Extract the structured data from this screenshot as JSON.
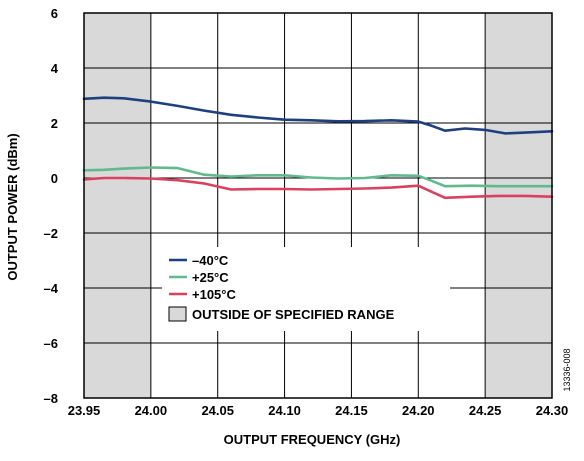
{
  "chart_data": {
    "type": "line",
    "xlabel": "OUTPUT FREQUENCY (GHz)",
    "ylabel": "OUTPUT POWER (dBm)",
    "xlim": [
      23.95,
      24.3
    ],
    "ylim": [
      -8,
      6
    ],
    "x_ticks": [
      23.95,
      24.0,
      24.05,
      24.1,
      24.15,
      24.2,
      24.25,
      24.3
    ],
    "x_tick_labels": [
      "23.95",
      "24.00",
      "24.05",
      "24.10",
      "24.15",
      "24.20",
      "24.25",
      "24.30"
    ],
    "y_ticks": [
      -8,
      -6,
      -4,
      -2,
      0,
      2,
      4,
      6
    ],
    "y_tick_labels": [
      "–8",
      "–6",
      "–4",
      "–2",
      "0",
      "2",
      "4",
      "6"
    ],
    "grid": true,
    "shaded_regions": [
      {
        "x_start": 23.95,
        "x_end": 24.0,
        "color": "#d9d9d9"
      },
      {
        "x_start": 24.25,
        "x_end": 24.3,
        "color": "#d9d9d9"
      }
    ],
    "series": [
      {
        "name": "–40°C",
        "color": "#1f3f7f",
        "x": [
          23.95,
          23.965,
          23.98,
          24.0,
          24.02,
          24.04,
          24.06,
          24.08,
          24.1,
          24.12,
          24.14,
          24.16,
          24.18,
          24.2,
          24.21,
          24.22,
          24.235,
          24.25,
          24.265,
          24.28,
          24.3
        ],
        "y": [
          2.88,
          2.92,
          2.9,
          2.78,
          2.62,
          2.45,
          2.3,
          2.2,
          2.12,
          2.1,
          2.06,
          2.07,
          2.1,
          2.05,
          1.9,
          1.72,
          1.8,
          1.75,
          1.62,
          1.65,
          1.7
        ]
      },
      {
        "name": "+25°C",
        "color": "#62b98e",
        "x": [
          23.95,
          23.965,
          23.98,
          24.0,
          24.02,
          24.04,
          24.06,
          24.08,
          24.1,
          24.12,
          24.14,
          24.16,
          24.18,
          24.2,
          24.21,
          24.22,
          24.24,
          24.26,
          24.28,
          24.3
        ],
        "y": [
          0.28,
          0.3,
          0.34,
          0.38,
          0.36,
          0.12,
          0.05,
          0.1,
          0.1,
          0.02,
          -0.02,
          0.0,
          0.1,
          0.08,
          -0.1,
          -0.3,
          -0.28,
          -0.3,
          -0.3,
          -0.3
        ]
      },
      {
        "name": "+105°C",
        "color": "#d9415e",
        "x": [
          23.95,
          23.965,
          23.98,
          24.0,
          24.02,
          24.04,
          24.06,
          24.08,
          24.1,
          24.12,
          24.14,
          24.16,
          24.18,
          24.2,
          24.21,
          24.22,
          24.24,
          24.26,
          24.28,
          24.3
        ],
        "y": [
          -0.05,
          0.0,
          0.0,
          -0.02,
          -0.08,
          -0.2,
          -0.42,
          -0.4,
          -0.4,
          -0.42,
          -0.4,
          -0.38,
          -0.35,
          -0.28,
          -0.5,
          -0.72,
          -0.68,
          -0.65,
          -0.65,
          -0.68
        ]
      }
    ],
    "legend": {
      "placement": "lower-left-inside",
      "shaded_entry_label": "OUTSIDE OF SPECIFIED RANGE"
    },
    "figure_id": "13336-008"
  }
}
